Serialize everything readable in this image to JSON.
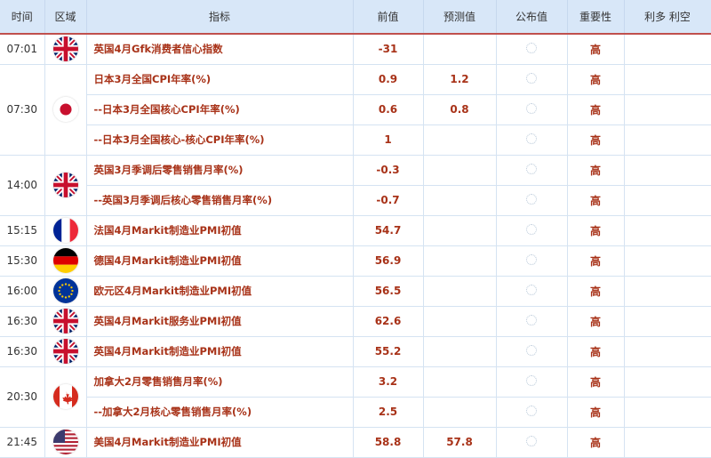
{
  "header": [
    "时间",
    "区域",
    "指标",
    "前值",
    "预测值",
    "公布值",
    "重要性",
    "利多 利空"
  ],
  "groups": [
    {
      "time": "07:01",
      "flag": "uk-flag",
      "rows": [
        {
          "indicator": "英国4月Gfk消费者信心指数",
          "prev": "-31",
          "forecast": "",
          "importance": "高"
        }
      ]
    },
    {
      "time": "07:30",
      "flag": "japan-flag",
      "rows": [
        {
          "indicator": "日本3月全国CPI年率(%)",
          "prev": "0.9",
          "forecast": "1.2",
          "importance": "高"
        },
        {
          "indicator": "--日本3月全国核心CPI年率(%)",
          "prev": "0.6",
          "forecast": "0.8",
          "importance": "高"
        },
        {
          "indicator": "--日本3月全国核心-核心CPI年率(%)",
          "prev": "1",
          "forecast": "",
          "importance": "高"
        }
      ]
    },
    {
      "time": "14:00",
      "flag": "uk-flag",
      "rows": [
        {
          "indicator": "英国3月季调后零售销售月率(%)",
          "prev": "-0.3",
          "forecast": "",
          "importance": "高"
        },
        {
          "indicator": "--英国3月季调后核心零售销售月率(%)",
          "prev": "-0.7",
          "forecast": "",
          "importance": "高"
        }
      ]
    },
    {
      "time": "15:15",
      "flag": "france-flag",
      "rows": [
        {
          "indicator": "法国4月Markit制造业PMI初值",
          "prev": "54.7",
          "forecast": "",
          "importance": "高"
        }
      ]
    },
    {
      "time": "15:30",
      "flag": "germany-flag",
      "rows": [
        {
          "indicator": "德国4月Markit制造业PMI初值",
          "prev": "56.9",
          "forecast": "",
          "importance": "高"
        }
      ]
    },
    {
      "time": "16:00",
      "flag": "eu-flag",
      "rows": [
        {
          "indicator": "欧元区4月Markit制造业PMI初值",
          "prev": "56.5",
          "forecast": "",
          "importance": "高"
        }
      ]
    },
    {
      "time": "16:30",
      "flag": "uk-flag",
      "rows": [
        {
          "indicator": "英国4月Markit服务业PMI初值",
          "prev": "62.6",
          "forecast": "",
          "importance": "高"
        }
      ]
    },
    {
      "time": "16:30",
      "flag": "uk-flag",
      "rows": [
        {
          "indicator": "英国4月Markit制造业PMI初值",
          "prev": "55.2",
          "forecast": "",
          "importance": "高"
        }
      ]
    },
    {
      "time": "20:30",
      "flag": "canada-flag",
      "rows": [
        {
          "indicator": "加拿大2月零售销售月率(%)",
          "prev": "3.2",
          "forecast": "",
          "importance": "高"
        },
        {
          "indicator": "--加拿大2月核心零售销售月率(%)",
          "prev": "2.5",
          "forecast": "",
          "importance": "高"
        }
      ]
    },
    {
      "time": "21:45",
      "flag": "us-flag",
      "rows": [
        {
          "indicator": "美国4月Markit制造业PMI初值",
          "prev": "58.8",
          "forecast": "57.8",
          "importance": "高"
        }
      ]
    }
  ],
  "colors": {
    "accent": "#a83218",
    "header_bg": "#d8e7f8",
    "header_border": "#c0504d"
  }
}
